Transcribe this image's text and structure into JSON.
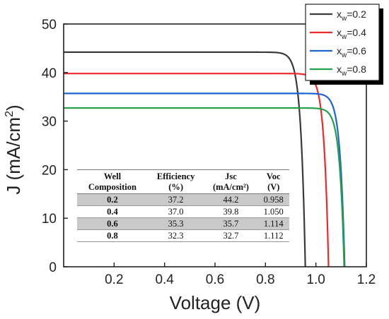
{
  "chart_data": {
    "type": "line",
    "xlabel": "Voltage (V)",
    "ylabel_main": "J (mA/cm",
    "ylabel_sup": "2",
    "ylabel_end": ")",
    "xlim": [
      0,
      1.2
    ],
    "ylim": [
      0,
      50
    ],
    "x_ticks": [
      "0.2",
      "0.4",
      "0.6",
      "0.8",
      "1.0",
      "1.2"
    ],
    "y_ticks": [
      "0",
      "10",
      "20",
      "30",
      "40",
      "50"
    ],
    "legend_position": "top-right",
    "series": [
      {
        "name_base": "x",
        "name_sub": "w",
        "name_value": "=0.2",
        "color": "#3a3a3a",
        "jsc": 44.2,
        "voc": 0.958
      },
      {
        "name_base": "x",
        "name_sub": "w",
        "name_value": "=0.4",
        "color": "#ee2a2a",
        "jsc": 39.8,
        "voc": 1.05
      },
      {
        "name_base": "x",
        "name_sub": "w",
        "name_value": "=0.6",
        "color": "#1f64d4",
        "jsc": 35.7,
        "voc": 1.114
      },
      {
        "name_base": "x",
        "name_sub": "w",
        "name_value": "=0.8",
        "color": "#22a04a",
        "jsc": 32.7,
        "voc": 1.112
      }
    ]
  },
  "table": {
    "headers_line1": [
      "Well",
      "Efficiency",
      "Jsc",
      "Voc"
    ],
    "headers_line2": [
      "Composition",
      "(%)",
      "(mA/cm²)",
      "(V)"
    ],
    "rows": [
      {
        "cells": [
          "0.2",
          "37.2",
          "44.2",
          "0.958"
        ],
        "shaded": true
      },
      {
        "cells": [
          "0.4",
          "37.0",
          "39.8",
          "1.050"
        ],
        "shaded": false
      },
      {
        "cells": [
          "0.6",
          "35.3",
          "35.7",
          "1.114"
        ],
        "shaded": true
      },
      {
        "cells": [
          "0.8",
          "32.3",
          "32.7",
          "1.112"
        ],
        "shaded": false
      }
    ]
  }
}
